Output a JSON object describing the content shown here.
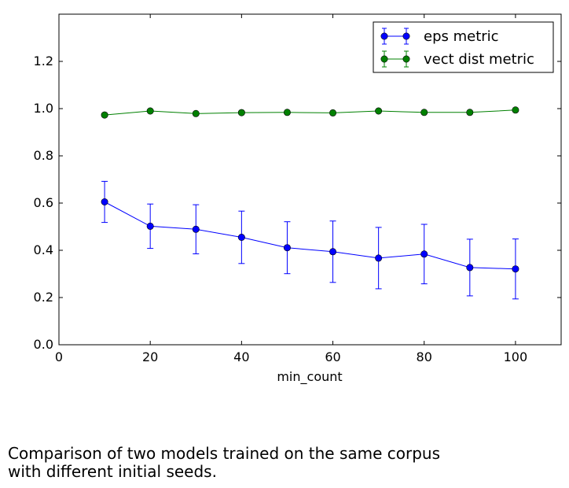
{
  "chart_data": {
    "type": "line",
    "title": "",
    "xlabel": "min_count",
    "ylabel": "",
    "xlim": [
      0,
      110
    ],
    "ylim": [
      0.0,
      1.4
    ],
    "xticks": [
      0,
      20,
      40,
      60,
      80,
      100
    ],
    "xtick_labels": [
      "0",
      "20",
      "40",
      "60",
      "80",
      "100"
    ],
    "yticks": [
      0.0,
      0.2,
      0.4,
      0.6,
      0.8,
      1.0,
      1.2
    ],
    "ytick_labels": [
      "0.0",
      "0.2",
      "0.4",
      "0.6",
      "0.8",
      "1.0",
      "1.2"
    ],
    "grid": false,
    "legend_position": "top-right",
    "x": [
      10,
      20,
      30,
      40,
      50,
      60,
      70,
      80,
      90,
      100
    ],
    "series": [
      {
        "name": "eps metric",
        "color": "#0000ff",
        "values": [
          0.605,
          0.502,
          0.489,
          0.455,
          0.411,
          0.394,
          0.367,
          0.384,
          0.327,
          0.321
        ],
        "error": [
          0.087,
          0.094,
          0.104,
          0.111,
          0.11,
          0.13,
          0.13,
          0.126,
          0.12,
          0.127
        ]
      },
      {
        "name": "vect dist metric",
        "color": "#008000",
        "values": [
          0.973,
          0.99,
          0.979,
          0.983,
          0.984,
          0.982,
          0.99,
          0.984,
          0.984,
          0.994
        ],
        "error": [
          0,
          0,
          0,
          0,
          0,
          0,
          0,
          0,
          0,
          0
        ]
      }
    ]
  },
  "caption": {
    "line1": "Comparison of two models trained on the same corpus",
    "line2": "with different initial seeds."
  }
}
